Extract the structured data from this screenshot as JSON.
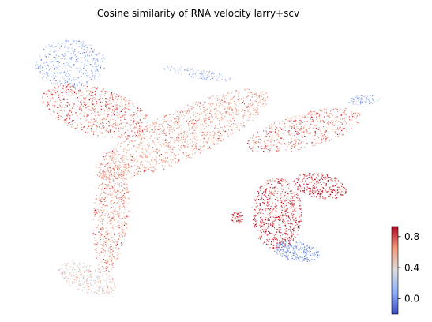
{
  "chart_data": {
    "type": "scatter",
    "title": "Cosine similarity of RNA velocity larry+scv",
    "xlabel": "",
    "ylabel": "",
    "axes_visible": false,
    "grid": false,
    "colormap": "coolwarm",
    "colorbar": {
      "placement": "right-bottom",
      "vmin": -0.2,
      "vmax": 0.93,
      "ticks": [
        0.8,
        0.4,
        0.0
      ],
      "tick_labels": [
        "0.8",
        "0.4",
        "0.0"
      ]
    },
    "regions": [
      {
        "name": "top-left-blue",
        "value": 0.12
      },
      {
        "name": "upper-left-red",
        "value": 0.7
      },
      {
        "name": "central-diagonal",
        "value": 0.58
      },
      {
        "name": "left-vertical-stem",
        "value": 0.62
      },
      {
        "name": "bottom-left-tail",
        "value": 0.42
      },
      {
        "name": "right-red-cluster",
        "value": 0.82
      },
      {
        "name": "right-branch",
        "value": 0.68
      },
      {
        "name": "right-tip-blue",
        "value": 0.18
      },
      {
        "name": "bottom-right-blue",
        "value": 0.05
      },
      {
        "name": "top-blue-strip",
        "value": 0.2
      }
    ],
    "colors": {
      "low": "#3b4cc0",
      "mid": "#dddddd",
      "high": "#b40426"
    }
  }
}
